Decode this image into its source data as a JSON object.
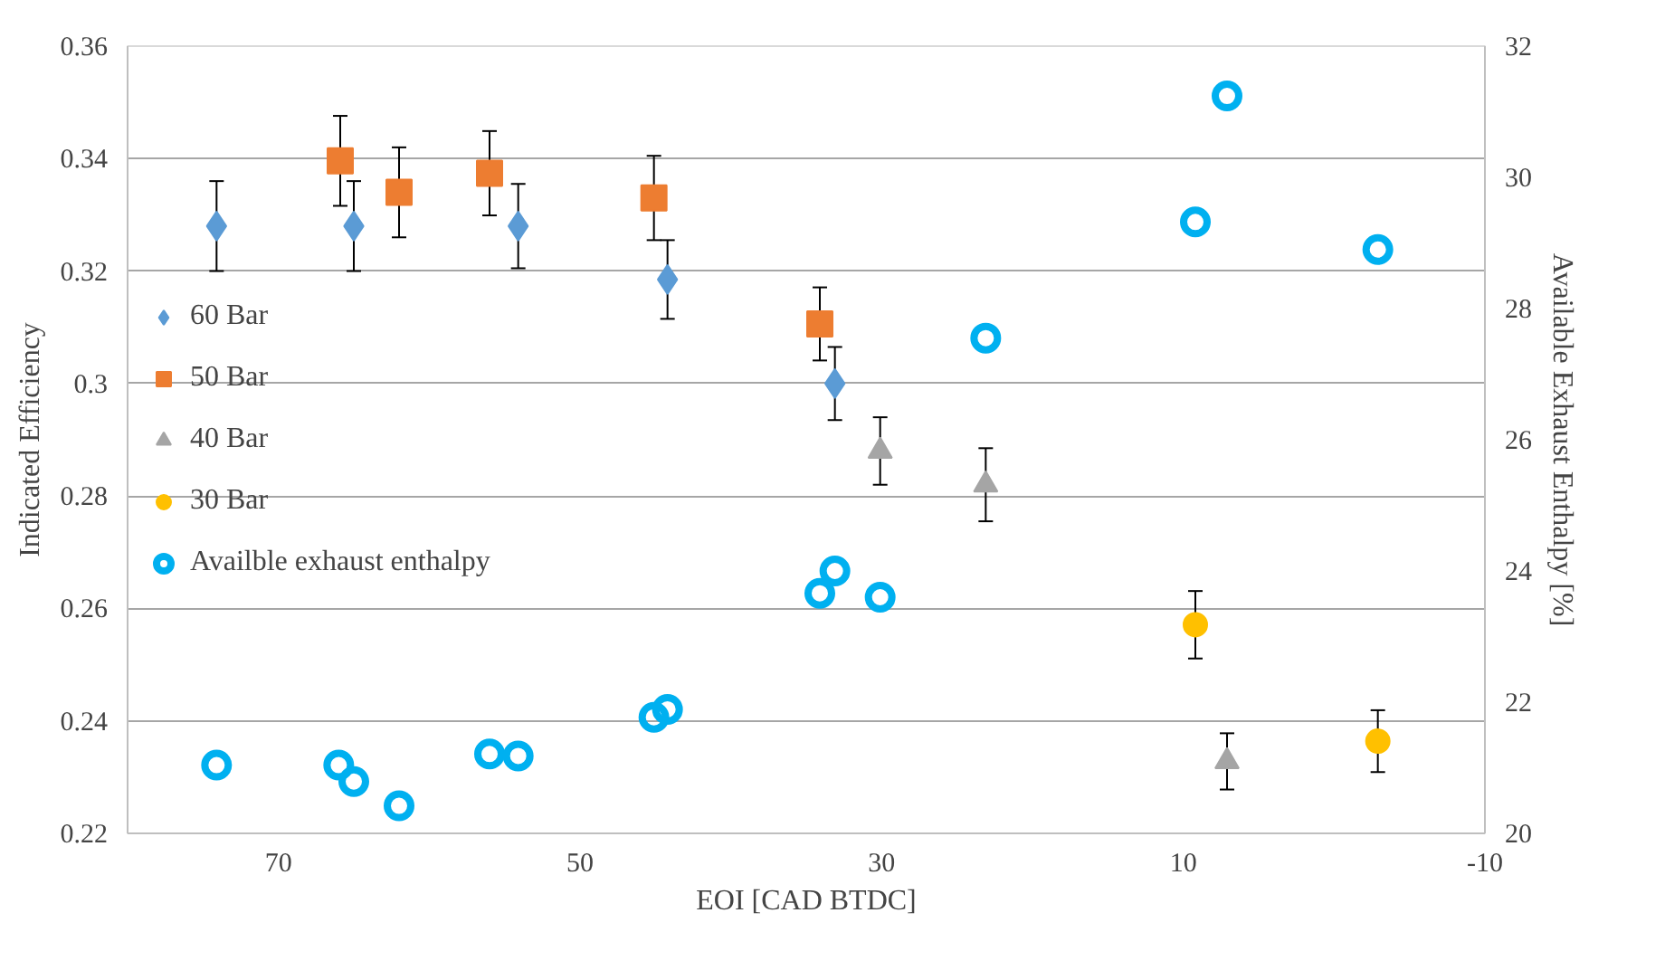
{
  "chart_data": {
    "type": "scatter",
    "xlabel": "EOI [CAD BTDC]",
    "ylabel": "Indicated Efficiency",
    "y2label": "Available Exhaust Enthalpy [%]",
    "xlim": [
      80,
      -10
    ],
    "xticks": [
      70,
      50,
      30,
      10,
      -10
    ],
    "ylim": [
      0.22,
      0.36
    ],
    "yticks": [
      0.22,
      0.24,
      0.26,
      0.28,
      0.3,
      0.32,
      0.34,
      0.36
    ],
    "y2lim": [
      20,
      32
    ],
    "y2ticks": [
      20,
      22,
      24,
      26,
      28,
      30,
      32
    ],
    "grid": "y",
    "legend": "left",
    "series": [
      {
        "name": "60 Bar",
        "color": "#5b9bd5",
        "marker": "diamond",
        "x": [
          74.1,
          65.0,
          54.1,
          44.2,
          33.1
        ],
        "values": [
          0.328,
          0.328,
          0.328,
          0.3185,
          0.3
        ],
        "errors": [
          0.008,
          0.008,
          0.0075,
          0.007,
          0.0065
        ]
      },
      {
        "name": "50 Bar",
        "color": "#ed7d31",
        "marker": "square",
        "x": [
          65.9,
          62.0,
          56.0,
          45.1,
          34.1
        ],
        "values": [
          0.3396,
          0.334,
          0.3374,
          0.333,
          0.3106
        ],
        "errors": [
          0.008,
          0.008,
          0.0075,
          0.0075,
          0.0065
        ]
      },
      {
        "name": "40 Bar",
        "color": "#a5a5a5",
        "marker": "triangle",
        "x": [
          30.1,
          23.1,
          7.1
        ],
        "values": [
          0.288,
          0.282,
          0.2328
        ],
        "errors": [
          0.006,
          0.0065,
          0.005
        ]
      },
      {
        "name": "30 Bar",
        "color": "#ffc000",
        "marker": "circle",
        "x": [
          9.2,
          -2.9
        ],
        "values": [
          0.2571,
          0.2364
        ],
        "errors": [
          0.006,
          0.0055
        ]
      },
      {
        "name": "Availble exhaust enthalpy",
        "color": "#00b0f0",
        "marker": "circle",
        "axis": "y2",
        "x": [
          74.1,
          66.0,
          65.0,
          62.0,
          56.0,
          54.1,
          45.1,
          44.2,
          34.1,
          33.1,
          30.1,
          23.1,
          9.2,
          7.1,
          -2.9
        ],
        "values": [
          21.04,
          21.04,
          20.79,
          20.42,
          21.21,
          21.18,
          21.77,
          21.89,
          23.66,
          24.0,
          23.6,
          27.55,
          29.32,
          31.24,
          28.9
        ]
      }
    ]
  }
}
